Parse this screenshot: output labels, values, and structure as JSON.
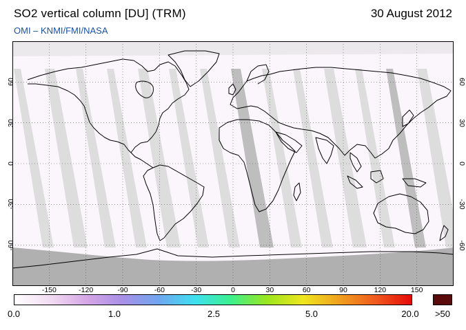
{
  "header": {
    "title": "SO2 vertical column [DU] (TRM)",
    "date": "30 August 2012",
    "source": "OMI  –  KNMI/FMI/NASA"
  },
  "map": {
    "projection": "equirectangular",
    "lon_ticks": [
      "-150",
      "-120",
      "-90",
      "-60",
      "-30",
      "0",
      "30",
      "60",
      "90",
      "120",
      "150"
    ],
    "lat_ticks": [
      "60",
      "30",
      "0",
      "-30",
      "-60"
    ],
    "grid": "dotted",
    "colors": {
      "background": "#fbf6fb",
      "orbit_gap_light": "#d8d8d8",
      "orbit_gap_dark": "#b4b4b4",
      "no_data_polar": "#b0b0b0",
      "coastline": "#000000"
    }
  },
  "colorbar": {
    "labels": [
      "0.0",
      "1.0",
      "2.5",
      "5.0",
      "20.0",
      ">50"
    ],
    "colors": [
      "#ffffff",
      "#f2dcf2",
      "#d6a6e6",
      "#a890e6",
      "#6fa6f0",
      "#3ee0f0",
      "#3cf08c",
      "#9ae61e",
      "#f0e61e",
      "#f0a01e",
      "#f05a1e",
      "#e60a0a"
    ],
    "max_color": "#5a0a0a"
  }
}
